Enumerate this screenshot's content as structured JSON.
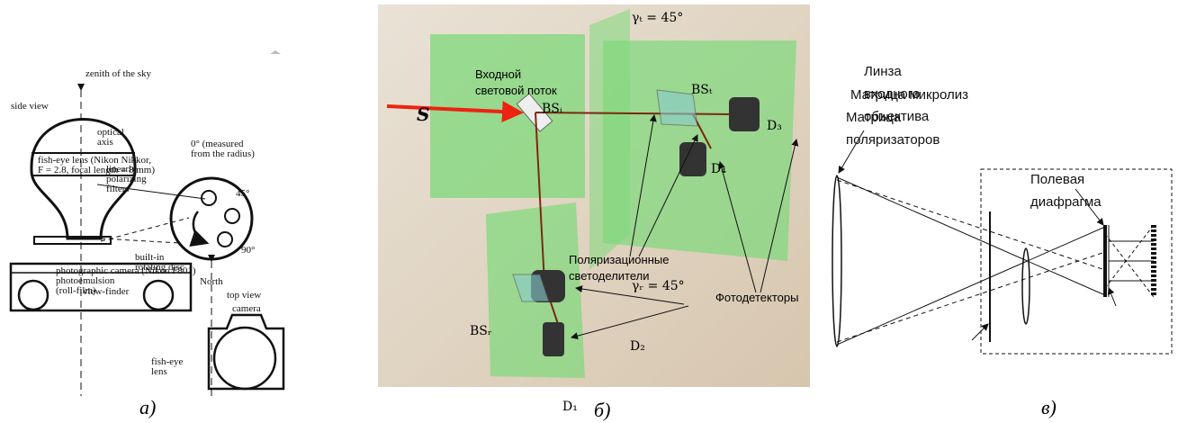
{
  "panels": [
    {
      "caption": "а)",
      "labels": [
        [
          "zenith of the sky"
        ],
        [
          "side view"
        ],
        [
          "optical",
          "axis"
        ],
        [
          "fish-eye lens (Nikon Nikkor,",
          "F = 2.8, focal length = 8 mm)"
        ],
        [
          "linearly",
          "polarizing",
          "filters"
        ],
        [
          "0° (measured",
          "from the radius)"
        ],
        [
          "45°"
        ],
        [
          "90°"
        ],
        [
          "built-in",
          "rotating disc"
        ],
        [
          "North"
        ],
        [
          "top view"
        ],
        [
          "photographic camera (Nikon F801)",
          "photoemulsion",
          "(roll-film)"
        ],
        [
          "view-finder"
        ],
        [
          "camera"
        ],
        [
          "fish-eye",
          "lens"
        ]
      ]
    },
    {
      "caption": "б)",
      "labels": [
        [
          "Входной",
          "световой поток"
        ],
        [
          "S"
        ],
        [
          "BSᵢ"
        ],
        [
          "γₜ = 45°"
        ],
        [
          "BSₜ"
        ],
        [
          "D₃"
        ],
        [
          "D₄"
        ],
        [
          "γᵣ = 45°"
        ],
        [
          "Поляризационные",
          "светоделители"
        ],
        [
          "Фотодетекторы"
        ],
        [
          "BSᵣ"
        ],
        [
          "D₂"
        ],
        [
          "D₁"
        ]
      ]
    },
    {
      "caption": "в)",
      "labels": [
        [
          "Линза",
          "входного",
          "объектива"
        ],
        [
          "Матрица микролиз"
        ],
        [
          "Матрица",
          "поляризаторов"
        ],
        [
          "Полевая",
          "диафрагма"
        ]
      ]
    }
  ]
}
